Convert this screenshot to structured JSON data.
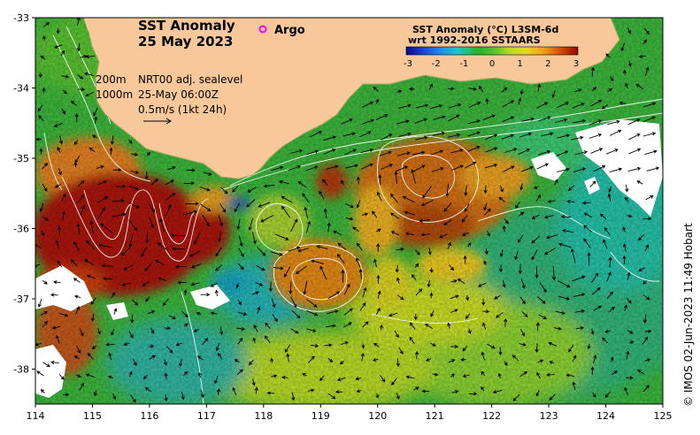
{
  "title": {
    "line1": "SST Anomaly",
    "line2": "25 May 2023"
  },
  "legend": {
    "argo_label": "Argo",
    "argo_color": "#ff00ff"
  },
  "info": {
    "depth1": "200m",
    "depth2": "1000m",
    "product": "NRT00 adj. sealevel",
    "time": "25-May 06:00Z",
    "vector_scale": "0.5m/s (1kt 24h)"
  },
  "colorbar": {
    "title1": "SST Anomaly (°C) L3SM-6d",
    "title2": "wrt 1992-2016 SSTAARS",
    "ticks": [
      "-3",
      "-2",
      "-1",
      "0",
      "1",
      "2",
      "3"
    ],
    "colors": [
      "#0a0a8c",
      "#1e40d8",
      "#1e8cf0",
      "#1ec8c8",
      "#28b428",
      "#78d028",
      "#d8e020",
      "#f0b418",
      "#e07810",
      "#c83c0a",
      "#8c0a00"
    ]
  },
  "axes": {
    "x_ticks": [
      "114",
      "115",
      "116",
      "117",
      "118",
      "119",
      "120",
      "121",
      "122",
      "123",
      "124",
      "125"
    ],
    "y_ticks": [
      "-33",
      "-34",
      "-35",
      "-36",
      "-37",
      "-38"
    ]
  },
  "credit": "© IMOS 02-Jun-2023 11:49 Hobart",
  "colors": {
    "land": "#f8c89a",
    "ocean_base": "#3cb43c"
  }
}
